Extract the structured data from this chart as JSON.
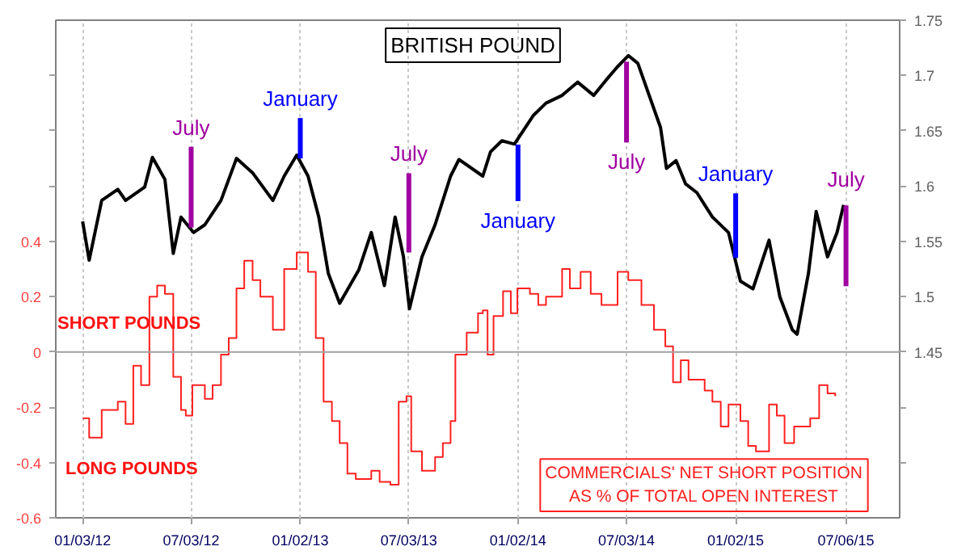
{
  "chart_data": {
    "type": "line",
    "title": "BRITISH POUND",
    "xlim": [
      "2011-11-19",
      "2015-10-04"
    ],
    "xticks": [
      {
        "value": "2012-01-03",
        "label": "01/03/12"
      },
      {
        "value": "2012-07-03",
        "label": "07/03/12"
      },
      {
        "value": "2013-01-02",
        "label": "01/02/13"
      },
      {
        "value": "2013-07-03",
        "label": "07/03/13"
      },
      {
        "value": "2014-01-02",
        "label": "01/02/14"
      },
      {
        "value": "2014-07-03",
        "label": "07/03/14"
      },
      {
        "value": "2015-01-02",
        "label": "01/02/15"
      },
      {
        "value": "2015-07-06",
        "label": "07/06/15"
      }
    ],
    "ylim": [
      -0.6,
      1.2
    ],
    "yticks": [
      -0.6,
      -0.4,
      -0.2,
      0,
      0.2,
      0.4,
      {
        "value": 0.6,
        "label": null
      },
      {
        "value": 0.8,
        "label": null
      },
      {
        "value": 1.0,
        "label": null
      }
    ],
    "y2lim": [
      1.3,
      1.75
    ],
    "y2ticks": [
      {
        "value": 1.35,
        "label": null
      },
      {
        "value": 1.4,
        "label": null
      },
      1.45,
      1.5,
      1.55,
      1.6,
      1.65,
      1.7,
      1.75
    ],
    "grid": "x",
    "ref_lines": [
      {
        "axis": "y",
        "value": 0,
        "label": null,
        "color": "#a0a0a0"
      }
    ],
    "series": [
      {
        "axis": "y2",
        "color": "#000000",
        "x": [
          "2012-01-03",
          "2012-01-14",
          "2012-02-04",
          "2012-03-02",
          "2012-03-15",
          "2012-04-16",
          "2012-04-29",
          "2012-05-20",
          "2012-06-03",
          "2012-06-16",
          "2012-07-07",
          "2012-07-26",
          "2012-08-22",
          "2012-09-17",
          "2012-10-14",
          "2012-11-17",
          "2012-12-06",
          "2012-12-27",
          "2013-01-15",
          "2013-02-02",
          "2013-02-18",
          "2013-03-09",
          "2013-04-10",
          "2013-05-01",
          "2013-05-23",
          "2013-06-10",
          "2013-06-24",
          "2013-07-04",
          "2013-07-25",
          "2013-08-16",
          "2013-09-11",
          "2013-09-25",
          "2013-11-04",
          "2013-11-17",
          "2013-12-06",
          "2013-12-27",
          "2014-01-28",
          "2014-02-18",
          "2014-03-17",
          "2014-04-12",
          "2014-05-09",
          "2014-05-30",
          "2014-06-18",
          "2014-07-06",
          "2014-07-22",
          "2014-08-10",
          "2014-08-29",
          "2014-09-08",
          "2014-09-24",
          "2014-10-10",
          "2014-10-29",
          "2014-11-24",
          "2014-12-21",
          "2015-01-10",
          "2015-01-31",
          "2015-02-27",
          "2015-03-17",
          "2015-04-07",
          "2015-04-15",
          "2015-05-04",
          "2015-05-17",
          "2015-06-05",
          "2015-06-21",
          "2015-07-02"
        ],
        "values": [
          1.568,
          1.533,
          1.587,
          1.597,
          1.587,
          1.599,
          1.626,
          1.606,
          1.539,
          1.572,
          1.558,
          1.565,
          1.587,
          1.625,
          1.612,
          1.587,
          1.609,
          1.628,
          1.609,
          1.572,
          1.521,
          1.494,
          1.524,
          1.558,
          1.51,
          1.572,
          1.536,
          1.489,
          1.536,
          1.565,
          1.609,
          1.624,
          1.609,
          1.631,
          1.641,
          1.638,
          1.664,
          1.675,
          1.682,
          1.694,
          1.682,
          1.696,
          1.708,
          1.718,
          1.711,
          1.682,
          1.653,
          1.616,
          1.623,
          1.602,
          1.594,
          1.572,
          1.558,
          1.514,
          1.507,
          1.551,
          1.5,
          1.47,
          1.466,
          1.521,
          1.577,
          1.536,
          1.558,
          1.583
        ]
      },
      {
        "type": "step",
        "color": "#ff2020",
        "x": [
          "2012-01-03",
          "2012-01-14",
          "2012-02-04",
          "2012-03-02",
          "2012-03-15",
          "2012-03-28",
          "2012-04-10",
          "2012-04-24",
          "2012-05-07",
          "2012-05-20",
          "2012-06-03",
          "2012-06-16",
          "2012-06-24",
          "2012-07-05",
          "2012-07-26",
          "2012-08-08",
          "2012-08-22",
          "2012-09-04",
          "2012-09-17",
          "2012-09-30",
          "2012-10-14",
          "2012-10-27",
          "2012-11-17",
          "2012-12-06",
          "2012-12-27",
          "2013-01-15",
          "2013-01-28",
          "2013-02-10",
          "2013-02-24",
          "2013-03-09",
          "2013-03-22",
          "2013-04-05",
          "2013-05-01",
          "2013-05-15",
          "2013-06-02",
          "2013-06-16",
          "2013-06-29",
          "2013-07-07",
          "2013-07-25",
          "2013-08-16",
          "2013-08-29",
          "2013-09-11",
          "2013-09-19",
          "2013-10-08",
          "2013-10-27",
          "2013-11-04",
          "2013-11-12",
          "2013-11-22",
          "2013-12-08",
          "2013-12-21",
          "2014-01-01",
          "2014-01-22",
          "2014-02-05",
          "2014-02-18",
          "2014-03-17",
          "2014-03-30",
          "2014-04-17",
          "2014-05-04",
          "2014-05-22",
          "2014-06-18",
          "2014-07-06",
          "2014-07-28",
          "2014-08-18",
          "2014-09-06",
          "2014-09-19",
          "2014-10-02",
          "2014-10-15",
          "2014-11-11",
          "2014-11-24",
          "2014-12-08",
          "2014-12-21",
          "2015-01-10",
          "2015-01-23",
          "2015-02-05",
          "2015-02-27",
          "2015-03-12",
          "2015-03-25",
          "2015-04-10",
          "2015-05-07",
          "2015-05-22",
          "2015-06-05",
          "2015-06-18"
        ],
        "values": [
          -0.24,
          -0.31,
          -0.21,
          -0.18,
          -0.26,
          -0.05,
          -0.12,
          0.2,
          0.24,
          0.21,
          -0.09,
          -0.21,
          -0.23,
          -0.12,
          -0.17,
          -0.12,
          -0.01,
          0.05,
          0.23,
          0.33,
          0.26,
          0.2,
          0.08,
          0.3,
          0.36,
          0.29,
          0.05,
          -0.18,
          -0.25,
          -0.33,
          -0.44,
          -0.46,
          -0.43,
          -0.47,
          -0.48,
          -0.18,
          -0.16,
          -0.36,
          -0.43,
          -0.38,
          -0.33,
          -0.25,
          -0.01,
          0.07,
          0.14,
          0.15,
          -0.01,
          0.13,
          0.22,
          0.14,
          0.23,
          0.21,
          0.17,
          0.2,
          0.3,
          0.23,
          0.29,
          0.21,
          0.17,
          0.29,
          0.26,
          0.17,
          0.08,
          0.02,
          -0.11,
          -0.03,
          -0.1,
          -0.14,
          -0.18,
          -0.27,
          -0.19,
          -0.25,
          -0.34,
          -0.36,
          -0.19,
          -0.23,
          -0.33,
          -0.27,
          -0.24,
          -0.12,
          -0.15,
          -0.16
        ]
      }
    ],
    "annotations": [
      {
        "text": "July",
        "x": "2012-07-03",
        "y": 0.45
      },
      {
        "text": "January",
        "x": "2013-01-02",
        "y": 0.7
      },
      {
        "text": "July",
        "x": "2013-07-03",
        "y": 0.36
      },
      {
        "text": "January",
        "x": "2014-01-02",
        "y": 0.75
      },
      {
        "text": "July",
        "x": "2014-07-03",
        "y": 1.05
      },
      {
        "text": "January",
        "x": "2015-01-02",
        "y": 0.34
      },
      {
        "text": "July",
        "x": "2015-07-06",
        "y": 0.53
      },
      "SHORT POUNDS",
      "LONG POUNDS",
      "COMMERCIALS' NET SHORT POSITION\nAS % OF TOTAL OPEN INTEREST"
    ]
  }
}
